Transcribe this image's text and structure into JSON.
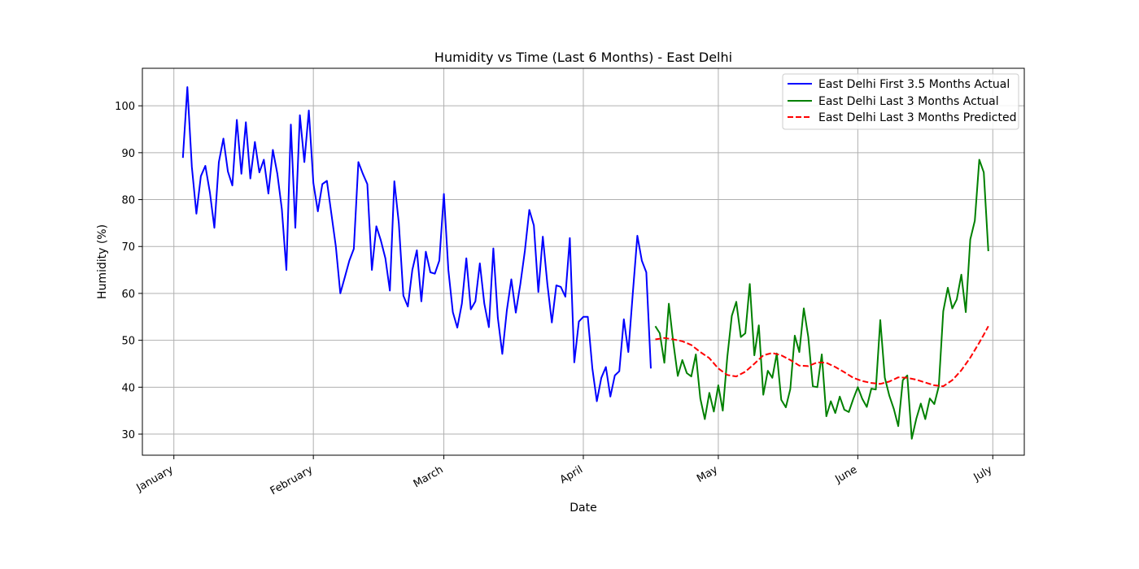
{
  "chart_data": {
    "type": "line",
    "title": "Humidity vs Time (Last 6 Months) - East Delhi",
    "xlabel": "Date",
    "ylabel": "Humidity (%)",
    "x_ticks": [
      "January",
      "February",
      "March",
      "April",
      "May",
      "June",
      "July"
    ],
    "y_ticks": [
      30,
      40,
      50,
      60,
      70,
      80,
      90,
      100
    ],
    "ylim": [
      25.5,
      108
    ],
    "grid": true,
    "legend_position": "top-right",
    "series": [
      {
        "name": "East Delhi First 3.5 Months Actual",
        "color": "#0000ff",
        "style": "solid",
        "points": [
          [
            "2024-01-03",
            88.9
          ],
          [
            "2024-01-04",
            104
          ],
          [
            "2024-01-05",
            87
          ],
          [
            "2024-01-06",
            77
          ],
          [
            "2024-01-07",
            85
          ],
          [
            "2024-01-08",
            87.2
          ],
          [
            "2024-01-09",
            81.5
          ],
          [
            "2024-01-10",
            74
          ],
          [
            "2024-01-11",
            88
          ],
          [
            "2024-01-12",
            93
          ],
          [
            "2024-01-13",
            86
          ],
          [
            "2024-01-14",
            83
          ],
          [
            "2024-01-15",
            97
          ],
          [
            "2024-01-16",
            85.5
          ],
          [
            "2024-01-17",
            96.5
          ],
          [
            "2024-01-18",
            84.5
          ],
          [
            "2024-01-19",
            92.3
          ],
          [
            "2024-01-20",
            85.8
          ],
          [
            "2024-01-21",
            88.5
          ],
          [
            "2024-01-22",
            81.3
          ],
          [
            "2024-01-23",
            90.6
          ],
          [
            "2024-01-24",
            85.5
          ],
          [
            "2024-01-25",
            78
          ],
          [
            "2024-01-26",
            65
          ],
          [
            "2024-01-27",
            96
          ],
          [
            "2024-01-28",
            74
          ],
          [
            "2024-01-29",
            98
          ],
          [
            "2024-01-30",
            88
          ],
          [
            "2024-01-31",
            99
          ],
          [
            "2024-02-01",
            83.5
          ],
          [
            "2024-02-02",
            77.5
          ],
          [
            "2024-02-03",
            83.3
          ],
          [
            "2024-02-04",
            84
          ],
          [
            "2024-02-05",
            77
          ],
          [
            "2024-02-06",
            70
          ],
          [
            "2024-02-07",
            60
          ],
          [
            "2024-02-08",
            63.5
          ],
          [
            "2024-02-09",
            67
          ],
          [
            "2024-02-10",
            69.5
          ],
          [
            "2024-02-11",
            88
          ],
          [
            "2024-02-12",
            85.5
          ],
          [
            "2024-02-13",
            83.3
          ],
          [
            "2024-02-14",
            65
          ],
          [
            "2024-02-15",
            74.3
          ],
          [
            "2024-02-16",
            71.3
          ],
          [
            "2024-02-17",
            67.5
          ],
          [
            "2024-02-18",
            60.6
          ],
          [
            "2024-02-19",
            83.9
          ],
          [
            "2024-02-20",
            75
          ],
          [
            "2024-02-21",
            59.5
          ],
          [
            "2024-02-22",
            57.2
          ],
          [
            "2024-02-23",
            65
          ],
          [
            "2024-02-24",
            69.2
          ],
          [
            "2024-02-25",
            58.3
          ],
          [
            "2024-02-26",
            68.9
          ],
          [
            "2024-02-27",
            64.5
          ],
          [
            "2024-02-28",
            64.2
          ],
          [
            "2024-02-29",
            67
          ],
          [
            "2024-03-01",
            81.2
          ],
          [
            "2024-03-02",
            65
          ],
          [
            "2024-03-03",
            56
          ],
          [
            "2024-03-04",
            52.7
          ],
          [
            "2024-03-05",
            57.8
          ],
          [
            "2024-03-06",
            67.5
          ],
          [
            "2024-03-07",
            56.6
          ],
          [
            "2024-03-08",
            58.3
          ],
          [
            "2024-03-09",
            66.4
          ],
          [
            "2024-03-10",
            57.8
          ],
          [
            "2024-03-11",
            52.8
          ],
          [
            "2024-03-12",
            69.6
          ],
          [
            "2024-03-13",
            54.8
          ],
          [
            "2024-03-14",
            47.1
          ],
          [
            "2024-03-15",
            56.4
          ],
          [
            "2024-03-16",
            63
          ],
          [
            "2024-03-17",
            55.9
          ],
          [
            "2024-03-18",
            62
          ],
          [
            "2024-03-19",
            69
          ],
          [
            "2024-03-20",
            77.8
          ],
          [
            "2024-03-21",
            74.5
          ],
          [
            "2024-03-22",
            60.3
          ],
          [
            "2024-03-23",
            72.1
          ],
          [
            "2024-03-24",
            62
          ],
          [
            "2024-03-25",
            53.8
          ],
          [
            "2024-03-26",
            61.7
          ],
          [
            "2024-03-27",
            61.4
          ],
          [
            "2024-03-28",
            59.3
          ],
          [
            "2024-03-29",
            71.8
          ],
          [
            "2024-03-30",
            45.3
          ],
          [
            "2024-03-31",
            54
          ],
          [
            "2024-04-01",
            55
          ],
          [
            "2024-04-02",
            55
          ],
          [
            "2024-04-03",
            44
          ],
          [
            "2024-04-04",
            37
          ],
          [
            "2024-04-05",
            42
          ],
          [
            "2024-04-06",
            44.3
          ],
          [
            "2024-04-07",
            38
          ],
          [
            "2024-04-08",
            42.5
          ],
          [
            "2024-04-09",
            43.4
          ],
          [
            "2024-04-10",
            54.5
          ],
          [
            "2024-04-11",
            47.5
          ],
          [
            "2024-04-12",
            60
          ],
          [
            "2024-04-13",
            72.3
          ],
          [
            "2024-04-14",
            67
          ],
          [
            "2024-04-15",
            64.5
          ],
          [
            "2024-04-16",
            44
          ]
        ]
      },
      {
        "name": "East Delhi Last 3 Months Actual",
        "color": "#008000",
        "style": "solid",
        "points": [
          [
            "2024-04-17",
            53
          ],
          [
            "2024-04-18",
            51.5
          ],
          [
            "2024-04-19",
            45.2
          ],
          [
            "2024-04-20",
            57.8
          ],
          [
            "2024-04-21",
            49.5
          ],
          [
            "2024-04-22",
            42.4
          ],
          [
            "2024-04-23",
            45.8
          ],
          [
            "2024-04-24",
            43
          ],
          [
            "2024-04-25",
            42.3
          ],
          [
            "2024-04-26",
            47
          ],
          [
            "2024-04-27",
            37.6
          ],
          [
            "2024-04-28",
            33.2
          ],
          [
            "2024-04-29",
            38.8
          ],
          [
            "2024-04-30",
            34.8
          ],
          [
            "2024-05-01",
            40.4
          ],
          [
            "2024-05-02",
            35
          ],
          [
            "2024-05-03",
            46.5
          ],
          [
            "2024-05-04",
            55.2
          ],
          [
            "2024-05-05",
            58.2
          ],
          [
            "2024-05-06",
            50.7
          ],
          [
            "2024-05-07",
            51.5
          ],
          [
            "2024-05-08",
            62
          ],
          [
            "2024-05-09",
            46.8
          ],
          [
            "2024-05-10",
            53.2
          ],
          [
            "2024-05-11",
            38.4
          ],
          [
            "2024-05-12",
            43.5
          ],
          [
            "2024-05-13",
            42
          ],
          [
            "2024-05-14",
            47.2
          ],
          [
            "2024-05-15",
            37.3
          ],
          [
            "2024-05-16",
            35.7
          ],
          [
            "2024-05-17",
            39.6
          ],
          [
            "2024-05-18",
            51
          ],
          [
            "2024-05-19",
            47.5
          ],
          [
            "2024-05-20",
            56.8
          ],
          [
            "2024-05-21",
            50.7
          ],
          [
            "2024-05-22",
            40.2
          ],
          [
            "2024-05-23",
            40
          ],
          [
            "2024-05-24",
            47
          ],
          [
            "2024-05-25",
            33.8
          ],
          [
            "2024-05-26",
            37
          ],
          [
            "2024-05-27",
            34.5
          ],
          [
            "2024-05-28",
            38
          ],
          [
            "2024-05-29",
            35.2
          ],
          [
            "2024-05-30",
            34.7
          ],
          [
            "2024-05-31",
            37.5
          ],
          [
            "2024-06-01",
            40
          ],
          [
            "2024-06-02",
            37.5
          ],
          [
            "2024-06-03",
            35.8
          ],
          [
            "2024-06-04",
            39.7
          ],
          [
            "2024-06-05",
            39.5
          ],
          [
            "2024-06-06",
            54.3
          ],
          [
            "2024-06-07",
            42
          ],
          [
            "2024-06-08",
            38.2
          ],
          [
            "2024-06-09",
            35.4
          ],
          [
            "2024-06-10",
            31.7
          ],
          [
            "2024-06-11",
            41.5
          ],
          [
            "2024-06-12",
            42.5
          ],
          [
            "2024-06-13",
            29
          ],
          [
            "2024-06-14",
            33.3
          ],
          [
            "2024-06-15",
            36.5
          ],
          [
            "2024-06-16",
            33.2
          ],
          [
            "2024-06-17",
            37.6
          ],
          [
            "2024-06-18",
            36.4
          ],
          [
            "2024-06-19",
            40.2
          ],
          [
            "2024-06-20",
            56.2
          ],
          [
            "2024-06-21",
            61.2
          ],
          [
            "2024-06-22",
            56.8
          ],
          [
            "2024-06-23",
            58.7
          ],
          [
            "2024-06-24",
            64
          ],
          [
            "2024-06-25",
            56
          ],
          [
            "2024-06-26",
            71.5
          ],
          [
            "2024-06-27",
            75.5
          ],
          [
            "2024-06-28",
            88.5
          ],
          [
            "2024-06-29",
            85.8
          ],
          [
            "2024-06-30",
            69
          ]
        ]
      },
      {
        "name": "East Delhi Last 3 Months Predicted",
        "color": "#ff0000",
        "style": "dashed",
        "points": [
          [
            "2024-04-17",
            50.2
          ],
          [
            "2024-04-19",
            50.5
          ],
          [
            "2024-04-21",
            50.2
          ],
          [
            "2024-04-23",
            49.8
          ],
          [
            "2024-04-25",
            49
          ],
          [
            "2024-04-27",
            47.5
          ],
          [
            "2024-04-29",
            46.2
          ],
          [
            "2024-05-01",
            44
          ],
          [
            "2024-05-03",
            42.6
          ],
          [
            "2024-05-05",
            42.3
          ],
          [
            "2024-05-07",
            43.3
          ],
          [
            "2024-05-09",
            45
          ],
          [
            "2024-05-11",
            46.8
          ],
          [
            "2024-05-13",
            47.3
          ],
          [
            "2024-05-15",
            46.8
          ],
          [
            "2024-05-17",
            45.8
          ],
          [
            "2024-05-19",
            44.6
          ],
          [
            "2024-05-21",
            44.5
          ],
          [
            "2024-05-23",
            45.3
          ],
          [
            "2024-05-25",
            45.2
          ],
          [
            "2024-05-27",
            44.3
          ],
          [
            "2024-05-29",
            43.2
          ],
          [
            "2024-05-31",
            42
          ],
          [
            "2024-06-02",
            41.3
          ],
          [
            "2024-06-04",
            40.9
          ],
          [
            "2024-06-06",
            40.7
          ],
          [
            "2024-06-08",
            41.2
          ],
          [
            "2024-06-10",
            42.1
          ],
          [
            "2024-06-12",
            42
          ],
          [
            "2024-06-14",
            41.6
          ],
          [
            "2024-06-16",
            41
          ],
          [
            "2024-06-18",
            40.4
          ],
          [
            "2024-06-20",
            40.2
          ],
          [
            "2024-06-22",
            41.5
          ],
          [
            "2024-06-24",
            43.6
          ],
          [
            "2024-06-26",
            46.3
          ],
          [
            "2024-06-28",
            49.5
          ],
          [
            "2024-06-29",
            51.2
          ],
          [
            "2024-06-30",
            53
          ]
        ]
      }
    ]
  }
}
